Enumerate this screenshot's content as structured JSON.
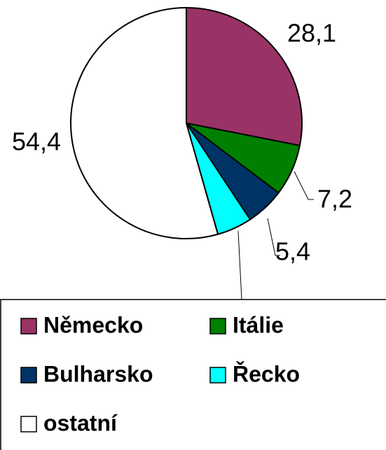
{
  "chart_data": {
    "type": "pie",
    "categories": [
      "Německo",
      "Itálie",
      "Bulharsko",
      "Řecko",
      "ostatní"
    ],
    "values": [
      28.1,
      7.2,
      5.4,
      4.9,
      54.4
    ],
    "value_labels": [
      "28,1",
      "7,2",
      "5,4",
      null,
      "54,4"
    ],
    "colors": [
      "#993366",
      "#008000",
      "#003366",
      "#00ffff",
      "#ffffff"
    ],
    "legend": "bottom"
  }
}
